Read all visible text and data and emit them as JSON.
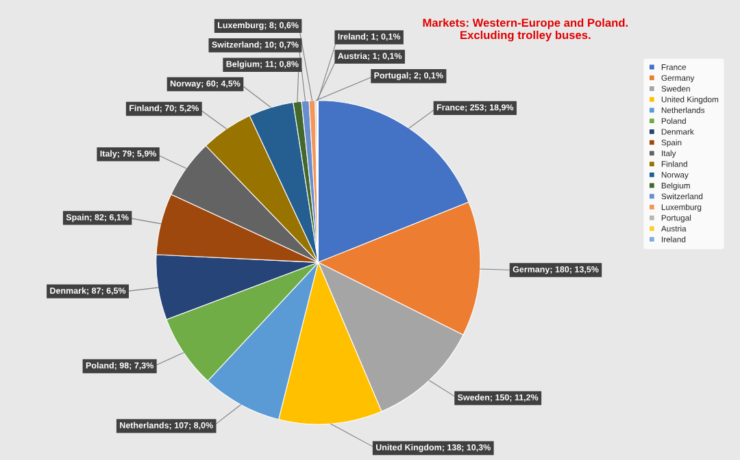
{
  "chart_data": {
    "type": "pie",
    "title": "Markets: Western-Europe and Poland.\nExcluding trolley buses.",
    "categories": [
      "France",
      "Germany",
      "Sweden",
      "United Kingdom",
      "Netherlands",
      "Poland",
      "Denmark",
      "Spain",
      "Italy",
      "Finland",
      "Norway",
      "Belgium",
      "Switzerland",
      "Luxemburg",
      "Portugal",
      "Austria",
      "Ireland"
    ],
    "values": [
      253,
      180,
      150,
      138,
      107,
      98,
      87,
      82,
      79,
      70,
      60,
      11,
      10,
      8,
      2,
      1,
      1
    ],
    "colors": [
      "#4472c4",
      "#ed7d31",
      "#a5a5a5",
      "#ffc000",
      "#5b9bd5",
      "#70ad47",
      "#264478",
      "#9e480e",
      "#636363",
      "#997300",
      "#255e91",
      "#43682b",
      "#698ed0",
      "#f1975a",
      "#b7b7b7",
      "#ffcd33",
      "#7cafdd"
    ],
    "value_labels": [
      "France; 253; 18,9%",
      "Germany; 180; 13,5%",
      "Sweden; 150; 11,2%",
      "United Kingdom; 138; 10,3%",
      "Netherlands; 107; 8,0%",
      "Poland; 98; 7,3%",
      "Denmark; 87; 6,5%",
      "Spain; 82; 6,1%",
      "Italy; 79; 5,9%",
      "Finland; 70; 5,2%",
      "Norway; 60; 4,5%",
      "Belgium; 11; 0,8%",
      "Switzerland; 10; 0,7%",
      "Luxemburg; 8; 0,6%",
      "Portugal; 2; 0,1%",
      "Austria; 1; 0,1%",
      "Ireland; 1; 0,1%"
    ],
    "legend": "right"
  }
}
